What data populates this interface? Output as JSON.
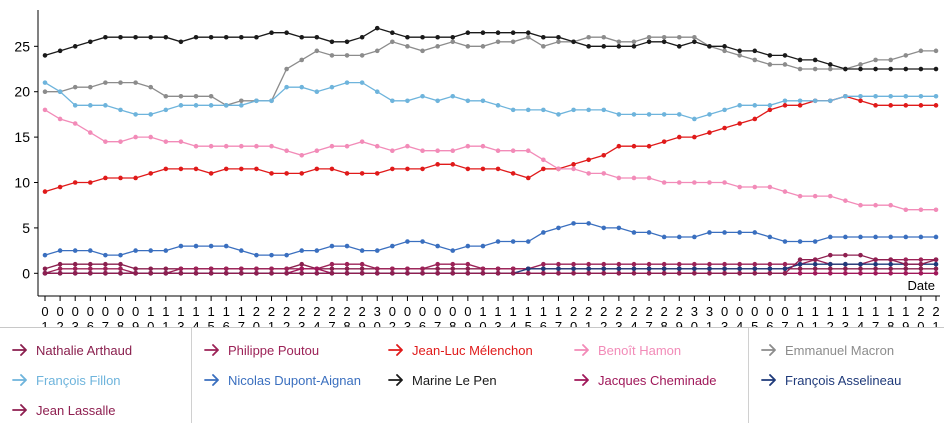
{
  "chart_data": {
    "type": "line",
    "xlabel": "Date",
    "ylabel": "",
    "ylim": [
      -2.5,
      29
    ],
    "yticks": [
      0,
      5,
      10,
      15,
      20,
      25
    ],
    "x": [
      "01",
      "02",
      "03",
      "06",
      "07",
      "08",
      "09",
      "10",
      "11",
      "13",
      "14",
      "15",
      "16",
      "17",
      "20",
      "21",
      "22",
      "23",
      "24",
      "27",
      "28",
      "29",
      "30",
      "02",
      "03",
      "06",
      "07",
      "08",
      "09",
      "10",
      "13",
      "14",
      "15",
      "16",
      "17",
      "20",
      "21",
      "22",
      "23",
      "24",
      "27",
      "28",
      "29",
      "30",
      "31",
      "03",
      "04",
      "05",
      "06",
      "07",
      "10",
      "11",
      "12",
      "13",
      "14",
      "17",
      "18",
      "19",
      "20",
      "21"
    ],
    "series": [
      {
        "name": "Nathalie Arthaud",
        "color": "#8a1f4e",
        "values": [
          0.5,
          1,
          1,
          1,
          1,
          1,
          0.5,
          0.5,
          0.5,
          0.5,
          0.5,
          0.5,
          0.5,
          0.5,
          0.5,
          0.5,
          0.5,
          1,
          0.5,
          0.5,
          0.5,
          0.5,
          0.5,
          0.5,
          0.5,
          0.5,
          0.5,
          0.5,
          0.5,
          0.5,
          0.5,
          0.5,
          0.5,
          0.5,
          0.5,
          0.5,
          0.5,
          0.5,
          0.5,
          0.5,
          0.5,
          0.5,
          0.5,
          0.5,
          0.5,
          0.5,
          0.5,
          0.5,
          0.5,
          0.5,
          0.5,
          0.5,
          0.5,
          0.5,
          0.5,
          0.5,
          0.5,
          0.5,
          0.5,
          0.5
        ]
      },
      {
        "name": "Philippe Poutou",
        "color": "#9c2257",
        "values": [
          0,
          0.5,
          0.5,
          0.5,
          0.5,
          0.5,
          0,
          0,
          0,
          0.5,
          0.5,
          0.5,
          0.5,
          0.5,
          0.5,
          0.5,
          0.5,
          0.5,
          0.5,
          1,
          1,
          1,
          0.5,
          0.5,
          0.5,
          0.5,
          1,
          1,
          1,
          0.5,
          0.5,
          0.5,
          0.5,
          1,
          1,
          1,
          1,
          1,
          1,
          1,
          1,
          1,
          1,
          1,
          1,
          1,
          1,
          1,
          1,
          1,
          1,
          1.5,
          1,
          1,
          1,
          1.5,
          1.5,
          1.5,
          1.5,
          1.5
        ]
      },
      {
        "name": "Jean-Luc Mélenchon",
        "color": "#e01a1a",
        "values": [
          9,
          9.5,
          10,
          10,
          10.5,
          10.5,
          10.5,
          11,
          11.5,
          11.5,
          11.5,
          11,
          11.5,
          11.5,
          11.5,
          11,
          11,
          11,
          11.5,
          11.5,
          11,
          11,
          11,
          11.5,
          11.5,
          11.5,
          12,
          12,
          11.5,
          11.5,
          11.5,
          11,
          10.5,
          11.5,
          11.5,
          12,
          12.5,
          13,
          14,
          14,
          14,
          14.5,
          15,
          15,
          15.5,
          16,
          16.5,
          17,
          18,
          18.5,
          18.5,
          19,
          19,
          19.5,
          19,
          18.5,
          18.5,
          18.5,
          18.5,
          18.5
        ]
      },
      {
        "name": "Benoît Hamon",
        "color": "#f28bb8",
        "values": [
          18,
          17,
          16.5,
          15.5,
          14.5,
          14.5,
          15,
          15,
          14.5,
          14.5,
          14,
          14,
          14,
          14,
          14,
          14,
          13.5,
          13,
          13.5,
          14,
          14,
          14.5,
          14,
          13.5,
          14,
          13.5,
          13.5,
          13.5,
          14,
          14,
          13.5,
          13.5,
          13.5,
          12.5,
          11.5,
          11.5,
          11,
          11,
          10.5,
          10.5,
          10.5,
          10,
          10,
          10,
          10,
          10,
          9.5,
          9.5,
          9.5,
          9,
          8.5,
          8.5,
          8.5,
          8,
          7.5,
          7.5,
          7.5,
          7,
          7,
          7
        ]
      },
      {
        "name": "Emmanuel Macron",
        "color": "#8c8c8c",
        "values": [
          20,
          20,
          20.5,
          20.5,
          21,
          21,
          21,
          20.5,
          19.5,
          19.5,
          19.5,
          19.5,
          18.5,
          19,
          19,
          19,
          22.5,
          23.5,
          24.5,
          24,
          24,
          24,
          24.5,
          25.5,
          25,
          24.5,
          25,
          25.5,
          25,
          25,
          25.5,
          25.5,
          26,
          25,
          25.5,
          25.5,
          26,
          26,
          25.5,
          25.5,
          26,
          26,
          26,
          26,
          25,
          24.5,
          24,
          23.5,
          23,
          23,
          22.5,
          22.5,
          22.5,
          22.5,
          23,
          23.5,
          23.5,
          24,
          24.5,
          24.5
        ]
      },
      {
        "name": "François Fillon",
        "color": "#6eb4dc",
        "values": [
          21,
          20,
          18.5,
          18.5,
          18.5,
          18,
          17.5,
          17.5,
          18,
          18.5,
          18.5,
          18.5,
          18.5,
          18.5,
          19,
          19,
          20.5,
          20.5,
          20,
          20.5,
          21,
          21,
          20,
          19,
          19,
          19.5,
          19,
          19.5,
          19,
          19,
          18.5,
          18,
          18,
          18,
          17.5,
          18,
          18,
          18,
          17.5,
          17.5,
          17.5,
          17.5,
          17.5,
          17,
          17.5,
          18,
          18.5,
          18.5,
          18.5,
          19,
          19,
          19,
          19,
          19.5,
          19.5,
          19.5,
          19.5,
          19.5,
          19.5,
          19.5
        ]
      },
      {
        "name": "Nicolas Dupont-Aignan",
        "color": "#3a6fbf",
        "values": [
          2,
          2.5,
          2.5,
          2.5,
          2,
          2,
          2.5,
          2.5,
          2.5,
          3,
          3,
          3,
          3,
          2.5,
          2,
          2,
          2,
          2.5,
          2.5,
          3,
          3,
          2.5,
          2.5,
          3,
          3.5,
          3.5,
          3,
          2.5,
          3,
          3,
          3.5,
          3.5,
          3.5,
          4.5,
          5,
          5.5,
          5.5,
          5,
          5,
          4.5,
          4.5,
          4,
          4,
          4,
          4.5,
          4.5,
          4.5,
          4.5,
          4,
          3.5,
          3.5,
          3.5,
          4,
          4,
          4,
          4,
          4,
          4,
          4,
          4
        ]
      },
      {
        "name": "Marine Le Pen",
        "color": "#1a1a1a",
        "values": [
          24,
          24.5,
          25,
          25.5,
          26,
          26,
          26,
          26,
          26,
          25.5,
          26,
          26,
          26,
          26,
          26,
          26.5,
          26.5,
          26,
          26,
          25.5,
          25.5,
          26,
          27,
          26.5,
          26,
          26,
          26,
          26,
          26.5,
          26.5,
          26.5,
          26.5,
          26.5,
          26,
          26,
          25.5,
          25,
          25,
          25,
          25,
          25.5,
          25.5,
          25,
          25.5,
          25,
          25,
          24.5,
          24.5,
          24,
          24,
          23.5,
          23.5,
          23,
          22.5,
          22.5,
          22.5,
          22.5,
          22.5,
          22.5,
          22.5
        ]
      },
      {
        "name": "Jacques Cheminade",
        "color": "#a0185a",
        "values": [
          0,
          0,
          0,
          0,
          0,
          0,
          0,
          0,
          0,
          0,
          0,
          0,
          0,
          0,
          0,
          0,
          0,
          0.5,
          0.5,
          0,
          0,
          0,
          0,
          0,
          0,
          0,
          0,
          0,
          0,
          0,
          0,
          0,
          0,
          0,
          0,
          0,
          0,
          0,
          0,
          0,
          0,
          0,
          0,
          0,
          0,
          0,
          0,
          0,
          0,
          0,
          0,
          0,
          0,
          0,
          0,
          0,
          0,
          0,
          0,
          0
        ]
      },
      {
        "name": "François Asselineau",
        "color": "#1f3a7a",
        "values": [
          0,
          0,
          0,
          0,
          0,
          0,
          0,
          0,
          0,
          0,
          0,
          0,
          0,
          0,
          0,
          0,
          0,
          0,
          0,
          0,
          0,
          0,
          0,
          0,
          0,
          0,
          0,
          0,
          0,
          0,
          0,
          0,
          0.5,
          0.5,
          0.5,
          0.5,
          0.5,
          0.5,
          0.5,
          0.5,
          0.5,
          0.5,
          0.5,
          0.5,
          0.5,
          0.5,
          0.5,
          0.5,
          0.5,
          0.5,
          1,
          1,
          1,
          1,
          1,
          1,
          1,
          1,
          1,
          1
        ]
      },
      {
        "name": "Jean Lassalle",
        "color": "#8e1f50",
        "values": [
          0,
          0,
          0,
          0,
          0,
          0,
          0,
          0,
          0,
          0,
          0,
          0,
          0,
          0,
          0,
          0,
          0,
          0,
          0,
          0,
          0,
          0,
          0,
          0,
          0,
          0,
          0,
          0,
          0,
          0,
          0,
          0,
          0,
          0,
          0,
          0,
          0,
          0,
          0,
          0,
          0,
          0,
          0,
          0,
          0,
          0,
          0,
          0,
          0,
          0,
          1.5,
          1.5,
          2,
          2,
          2,
          1.5,
          1.5,
          1,
          1,
          1.5
        ]
      }
    ]
  }
}
